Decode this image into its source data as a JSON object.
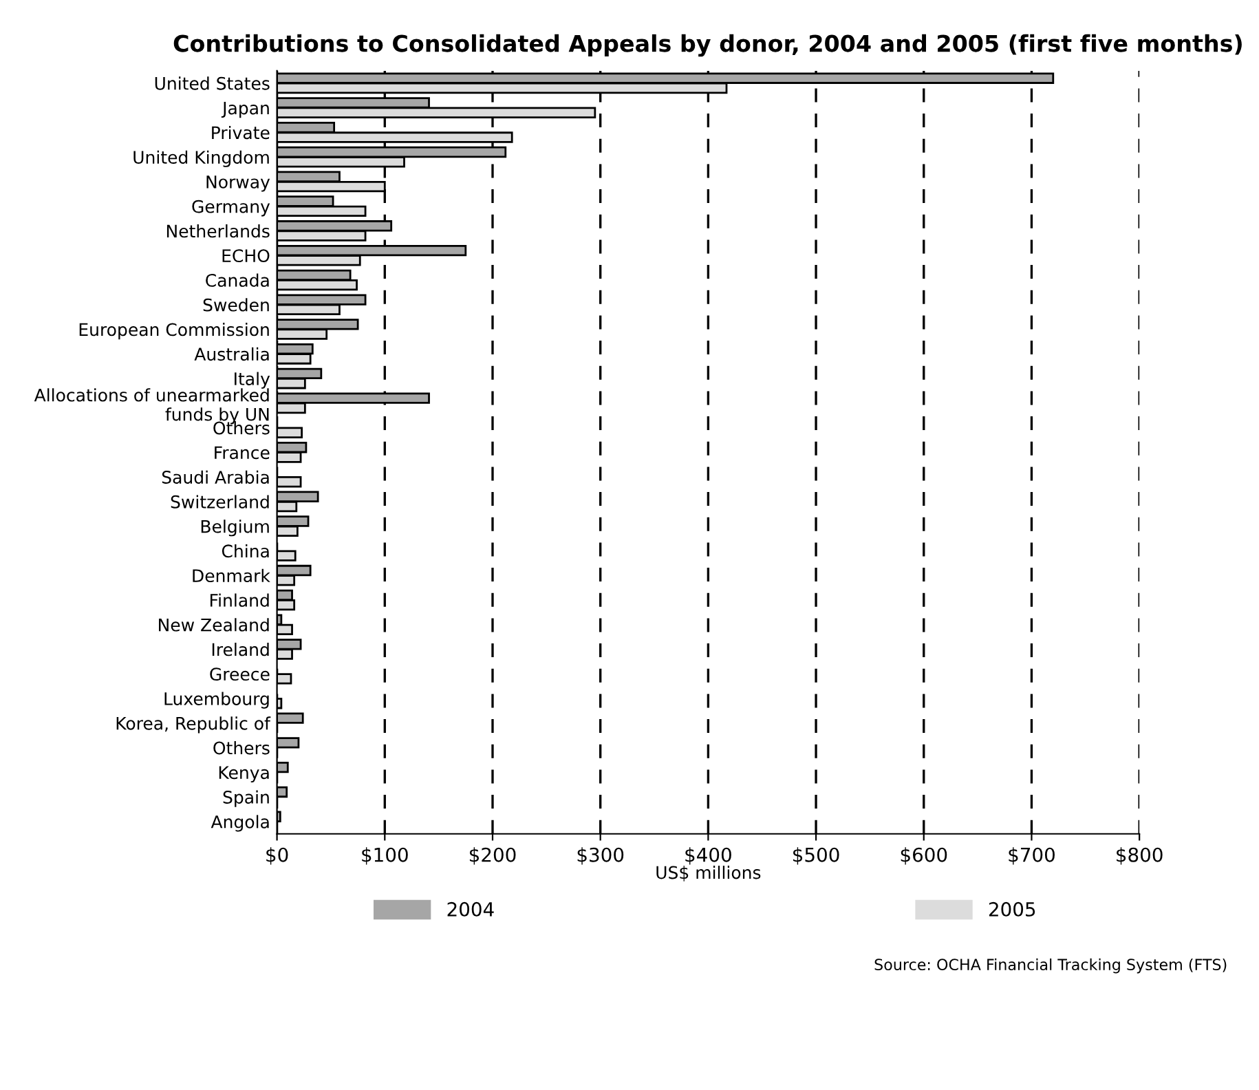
{
  "chart_data": {
    "type": "bar",
    "orientation": "horizontal",
    "title": "Contributions to Consolidated Appeals by donor, 2004 and 2005 (first five months)",
    "xlabel": "US$ millions",
    "categories": [
      "United States",
      "Japan",
      "Private",
      "United Kingdom",
      "Norway",
      "Germany",
      "Netherlands",
      "ECHO",
      "Canada",
      "Sweden",
      "European Commission",
      "Australia",
      "Italy",
      "Allocations of unearmarked\nfunds by UN",
      "Others",
      "France",
      "Saudi Arabia",
      "Switzerland",
      "Belgium",
      "China",
      "Denmark",
      "Finland",
      "New Zealand",
      "Ireland",
      "Greece",
      "Luxembourg",
      "Korea, Republic of",
      "Others",
      "Kenya",
      "Spain",
      "Angola"
    ],
    "series": [
      {
        "name": "2004",
        "color": "#a6a6a6",
        "values": [
          720,
          141,
          53,
          212,
          58,
          52,
          106,
          175,
          68,
          82,
          75,
          33,
          41,
          141,
          null,
          27,
          null,
          38,
          29,
          null,
          31,
          14,
          4,
          22,
          null,
          null,
          24,
          20,
          10,
          9,
          3
        ]
      },
      {
        "name": "2005",
        "color": "#dcdcdc",
        "values": [
          417,
          295,
          218,
          118,
          100,
          82,
          82,
          77,
          74,
          58,
          46,
          31,
          26,
          26,
          23,
          22,
          22,
          18,
          19,
          17,
          16,
          16,
          14,
          14,
          13,
          4,
          null,
          null,
          null,
          null,
          null
        ]
      }
    ],
    "xlim": [
      0,
      800
    ],
    "xticks": [
      {
        "value": 0,
        "label": "$0"
      },
      {
        "value": 100,
        "label": "$100"
      },
      {
        "value": 200,
        "label": "$200"
      },
      {
        "value": 300,
        "label": "$300"
      },
      {
        "value": 400,
        "label": "$400"
      },
      {
        "value": 500,
        "label": "$500"
      },
      {
        "value": 600,
        "label": "$600"
      },
      {
        "value": 700,
        "label": "$700"
      },
      {
        "value": 800,
        "label": "$800"
      }
    ],
    "grid": "x",
    "legend": "bottom",
    "annotations": [
      "Source: OCHA Financial Tracking System (FTS)"
    ]
  }
}
